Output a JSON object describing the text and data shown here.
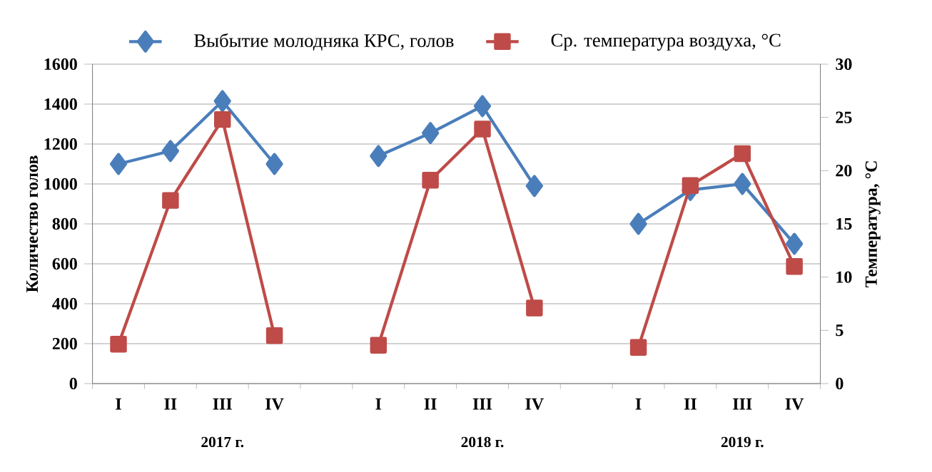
{
  "chart_data": {
    "type": "line",
    "categories": [
      "I",
      "II",
      "III",
      "IV",
      null,
      "I",
      "II",
      "III",
      "IV",
      null,
      "I",
      "II",
      "III",
      "IV"
    ],
    "ylabel": "Количество голов",
    "y2label": "Температура, °С",
    "ylim": [
      0,
      1600
    ],
    "yticks": [
      0,
      200,
      400,
      600,
      800,
      1000,
      1200,
      1400,
      1600
    ],
    "y2lim": [
      0,
      30
    ],
    "y2ticks": [
      0,
      5,
      10,
      15,
      20,
      25,
      30
    ],
    "grid": "y",
    "legend": "top",
    "series": [
      {
        "name": "Выбытие молодняка КРС, голов",
        "color": "#4a7ebb",
        "marker": "diamond",
        "values": [
          1100,
          1165,
          1415,
          1100,
          null,
          1140,
          1255,
          1390,
          990,
          null,
          800,
          970,
          1000,
          700
        ]
      },
      {
        "name": "Ср. температура воздуха, °С",
        "color": "#be4b48",
        "marker": "square",
        "axis": "y2",
        "values": [
          3.7,
          17.2,
          24.8,
          4.5,
          null,
          3.6,
          19.1,
          23.9,
          7.1,
          null,
          3.4,
          18.6,
          21.6,
          11.0
        ]
      }
    ],
    "annotations": [
      "2017 г.",
      "2018 г.",
      "2019 г."
    ]
  }
}
